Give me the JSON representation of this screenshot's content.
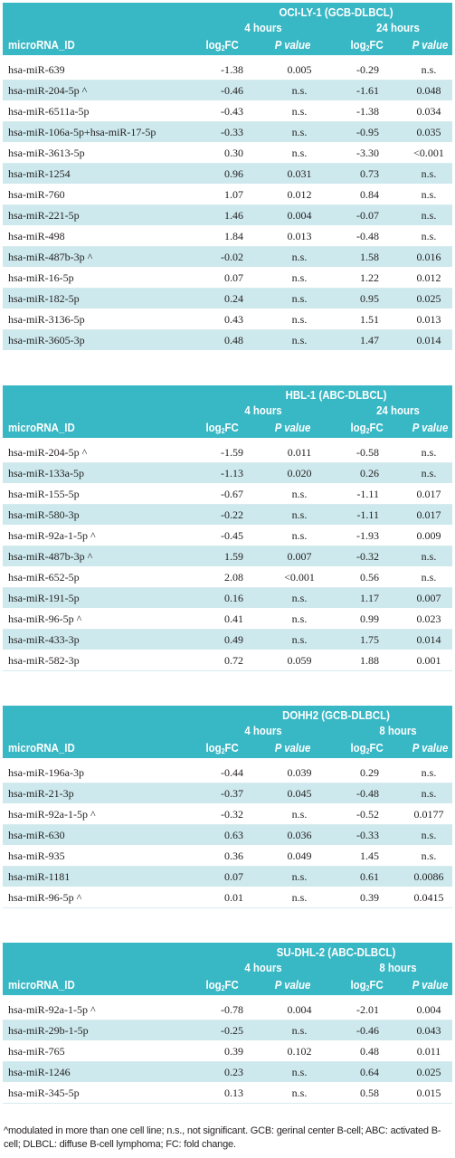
{
  "tables": [
    {
      "cell_line": "OCI-LY-1 (GCB-DLBCL)",
      "time1": "4 hours",
      "time2": "24 hours",
      "col_id": "microRNA_ID",
      "col_fc_main": "log",
      "col_fc_sub": "2",
      "col_fc_tail": "FC",
      "col_p": "P value",
      "rows": [
        [
          "hsa-miR-639",
          "-1.38",
          "0.005",
          "-0.29",
          "n.s."
        ],
        [
          "hsa-miR-204-5p ^",
          "-0.46",
          "n.s.",
          "-1.61",
          "0.048"
        ],
        [
          "hsa-miR-6511a-5p",
          "-0.43",
          "n.s.",
          "-1.38",
          "0.034"
        ],
        [
          "hsa-miR-106a-5p+hsa-miR-17-5p",
          "-0.33",
          "n.s.",
          "-0.95",
          "0.035"
        ],
        [
          "hsa-miR-3613-5p",
          "0.30",
          "n.s.",
          "-3.30",
          "<0.001"
        ],
        [
          "hsa-miR-1254",
          "0.96",
          "0.031",
          "0.73",
          "n.s."
        ],
        [
          "hsa-miR-760",
          "1.07",
          "0.012",
          "0.84",
          "n.s."
        ],
        [
          "hsa-miR-221-5p",
          "1.46",
          "0.004",
          "-0.07",
          "n.s."
        ],
        [
          "hsa-miR-498",
          "1.84",
          "0.013",
          "-0.48",
          "n.s."
        ],
        [
          "hsa-miR-487b-3p ^",
          "-0.02",
          "n.s.",
          "1.58",
          "0.016"
        ],
        [
          "hsa-miR-16-5p",
          "0.07",
          "n.s.",
          "1.22",
          "0.012"
        ],
        [
          "hsa-miR-182-5p",
          "0.24",
          "n.s.",
          "0.95",
          "0.025"
        ],
        [
          "hsa-miR-3136-5p",
          "0.43",
          "n.s.",
          "1.51",
          "0.013"
        ],
        [
          "hsa-miR-3605-3p",
          "0.48",
          "n.s.",
          "1.47",
          "0.014"
        ]
      ]
    },
    {
      "cell_line": "HBL-1 (ABC-DLBCL)",
      "time1": "4 hours",
      "time2": "24 hours",
      "col_id": "microRNA_ID",
      "col_fc_main": "log",
      "col_fc_sub": "2",
      "col_fc_tail": "FC",
      "col_p": "P value",
      "rows": [
        [
          "hsa-miR-204-5p ^",
          "-1.59",
          "0.011",
          "-0.58",
          "n.s."
        ],
        [
          "hsa-miR-133a-5p",
          "-1.13",
          "0.020",
          "0.26",
          "n.s."
        ],
        [
          "hsa-miR-155-5p",
          "-0.67",
          "n.s.",
          "-1.11",
          "0.017"
        ],
        [
          "hsa-miR-580-3p",
          "-0.22",
          "n.s.",
          "-1.11",
          "0.017"
        ],
        [
          "hsa-miR-92a-1-5p ^",
          "-0.45",
          "n.s.",
          "-1.93",
          "0.009"
        ],
        [
          "hsa-miR-487b-3p ^",
          "1.59",
          "0.007",
          "-0.32",
          "n.s."
        ],
        [
          "hsa-miR-652-5p",
          "2.08",
          "<0.001",
          "0.56",
          "n.s."
        ],
        [
          "hsa-miR-191-5p",
          "0.16",
          "n.s.",
          "1.17",
          "0.007"
        ],
        [
          "hsa-miR-96-5p ^",
          "0.41",
          "n.s.",
          "0.99",
          "0.023"
        ],
        [
          "hsa-miR-433-3p",
          "0.49",
          "n.s.",
          "1.75",
          "0.014"
        ],
        [
          "hsa-miR-582-3p",
          "0.72",
          "0.059",
          "1.88",
          "0.001"
        ]
      ]
    },
    {
      "cell_line": "DOHH2 (GCB-DLBCL)",
      "time1": "4 hours",
      "time2": "8 hours",
      "col_id": "microRNA_ID",
      "col_fc_main": "log",
      "col_fc_sub": "2",
      "col_fc_tail": "FC",
      "col_p": "P value",
      "rows": [
        [
          "hsa-miR-196a-3p",
          "-0.44",
          "0.039",
          "0.29",
          "n.s."
        ],
        [
          "hsa-miR-21-3p",
          "-0.37",
          "0.045",
          "-0.48",
          "n.s."
        ],
        [
          "hsa-miR-92a-1-5p ^",
          "-0.32",
          "n.s.",
          "-0.52",
          "0.0177"
        ],
        [
          "hsa-miR-630",
          "0.63",
          "0.036",
          "-0.33",
          "n.s."
        ],
        [
          "hsa-miR-935",
          "0.36",
          "0.049",
          "1.45",
          "n.s."
        ],
        [
          "hsa-miR-1181",
          "0.07",
          "n.s.",
          "0.61",
          "0.0086"
        ],
        [
          "hsa-miR-96-5p ^",
          "0.01",
          "n.s.",
          "0.39",
          "0.0415"
        ]
      ]
    },
    {
      "cell_line": "SU-DHL-2 (ABC-DLBCL)",
      "time1": "4 hours",
      "time2": "8 hours",
      "col_id": "microRNA_ID",
      "col_fc_main": "log",
      "col_fc_sub": "2",
      "col_fc_tail": "FC",
      "col_p": "P value",
      "rows": [
        [
          "hsa-miR-92a-1-5p ^",
          "-0.78",
          "0.004",
          "-2.01",
          "0.004"
        ],
        [
          "hsa-miR-29b-1-5p",
          "-0.25",
          "n.s.",
          "-0.46",
          "0.043"
        ],
        [
          "hsa-miR-765",
          "0.39",
          "0.102",
          "0.48",
          "0.011"
        ],
        [
          "hsa-miR-1246",
          "0.23",
          "n.s.",
          "0.64",
          "0.025"
        ],
        [
          "hsa-miR-345-5p",
          "0.13",
          "n.s.",
          "0.58",
          "0.015"
        ]
      ]
    }
  ],
  "footnote": "^modulated in more than one cell line; n.s., not significant. GCB: gerinal center B-cell; ABC: activated B-cell; DLBCL: diffuse B-cell lymphoma; FC: fold change."
}
